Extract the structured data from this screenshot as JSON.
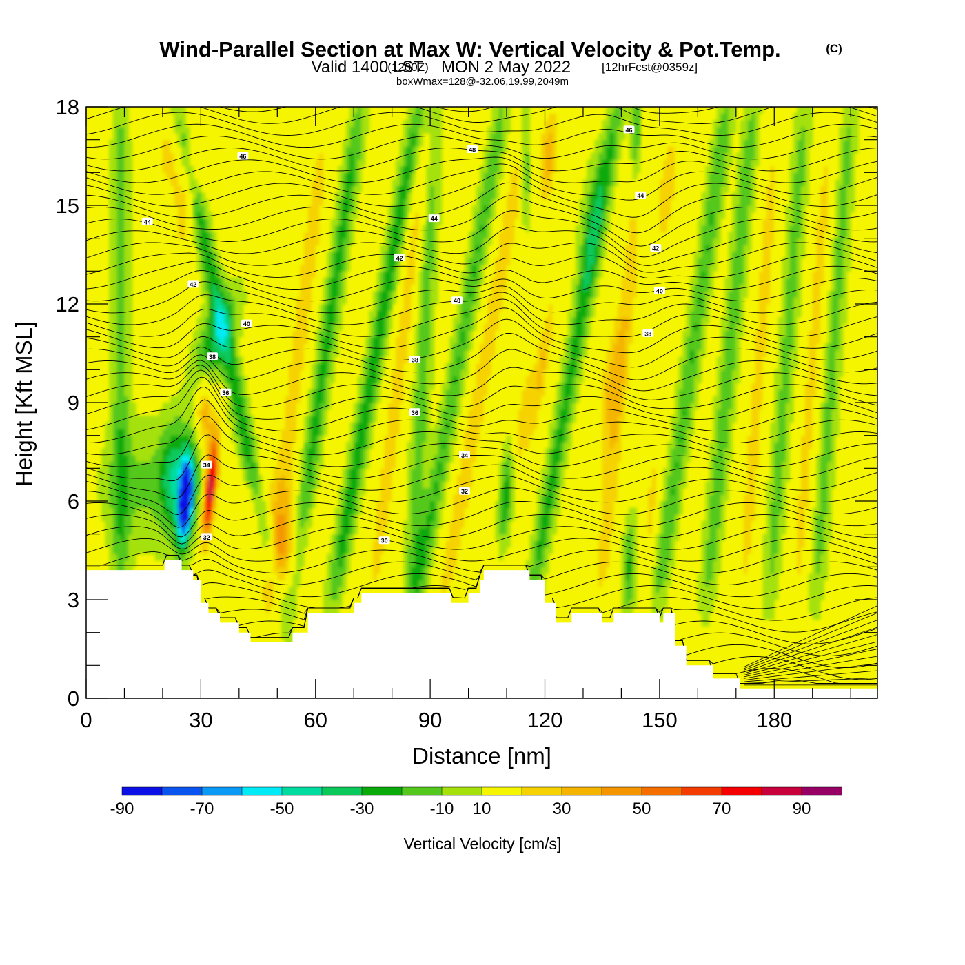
{
  "title": {
    "main": "Wind-Parallel Section at Max W: Vertical Velocity & Pot.Temp.",
    "copyright": "(C)",
    "valid_prefix": "Valid 1400 LST",
    "valid_utc": "(1200Z)",
    "valid_date": "MON 2 May 2022",
    "forecast": "[12hrFcst@0359z]",
    "box": "boxWmax=128@-32.06,19.99,2049m"
  },
  "chart_data": {
    "type": "heatmap",
    "xlabel": "Distance [nm]",
    "ylabel": "Height [Kft MSL]",
    "xlim": [
      0,
      207
    ],
    "ylim": [
      0,
      18
    ],
    "x_ticks": [
      0,
      30,
      60,
      90,
      120,
      150,
      180
    ],
    "y_ticks": [
      0,
      3,
      6,
      9,
      12,
      15,
      18
    ],
    "colorbar": {
      "label": "Vertical Velocity [cm/s]",
      "ticks": [
        -90,
        -70,
        -50,
        -30,
        -10,
        10,
        30,
        50,
        70,
        90
      ],
      "bins": [
        -90,
        -80,
        -70,
        -60,
        -50,
        -40,
        -30,
        -20,
        -10,
        10,
        20,
        30,
        40,
        50,
        60,
        70,
        80,
        90
      ],
      "colors": [
        "#0a10e6",
        "#0a55f0",
        "#0a99f5",
        "#00ebf5",
        "#00dca0",
        "#0ac85a",
        "#0aaa0a",
        "#55c81e",
        "#a5e10a",
        "#f5f500",
        "#f5d200",
        "#f5b400",
        "#f59600",
        "#f56e00",
        "#f53c00",
        "#f50000",
        "#c8003c",
        "#960064"
      ]
    },
    "background_level": "0 to 10",
    "w_field_features": [
      {
        "x_center": 26,
        "z_center": 6.0,
        "min_cm_s": -90,
        "note": "downdraft core"
      },
      {
        "x_center": 32,
        "z_center": 6.4,
        "max_cm_s": 80,
        "note": "updraft core"
      },
      {
        "x_center": 52,
        "z_center": 4.5,
        "max_cm_s": 30
      },
      {
        "x_center": 121,
        "z_center": 16.5,
        "max_cm_s": 30
      },
      {
        "x_center": 110,
        "z_center": 6.0,
        "min_cm_s": -30
      },
      {
        "x_center": 142,
        "z_center": 4.0,
        "min_cm_s": -30
      },
      {
        "x_center": 145,
        "z_center": 17.0,
        "min_cm_s": -30
      }
    ],
    "theta_contour_labels": [
      "30",
      "32",
      "32",
      "34",
      "34",
      "36",
      "36",
      "38",
      "38",
      "38",
      "40",
      "40",
      "40",
      "42",
      "42",
      "42",
      "44",
      "44",
      "44",
      "46",
      "46",
      "48"
    ],
    "terrain_profile": [
      [
        0,
        3.9
      ],
      [
        20,
        3.9
      ],
      [
        20.5,
        4.2
      ],
      [
        24,
        4.2
      ],
      [
        25,
        3.9
      ],
      [
        28,
        3.6
      ],
      [
        30,
        2.9
      ],
      [
        32,
        2.6
      ],
      [
        35,
        2.3
      ],
      [
        40,
        2.0
      ],
      [
        43,
        1.7
      ],
      [
        53,
        1.7
      ],
      [
        54,
        2.0
      ],
      [
        58,
        2.6
      ],
      [
        67,
        2.6
      ],
      [
        70,
        2.9
      ],
      [
        72,
        3.2
      ],
      [
        95,
        3.2
      ],
      [
        95.5,
        2.9
      ],
      [
        100,
        3.2
      ],
      [
        103,
        3.6
      ],
      [
        104,
        3.9
      ],
      [
        114,
        3.9
      ],
      [
        116,
        3.6
      ],
      [
        120,
        2.9
      ],
      [
        123,
        2.3
      ],
      [
        127,
        2.6
      ],
      [
        132,
        2.6
      ],
      [
        135,
        2.3
      ],
      [
        138,
        2.6
      ],
      [
        149,
        2.6
      ],
      [
        150,
        2.3
      ],
      [
        151,
        2.6
      ],
      [
        153,
        2.6
      ],
      [
        154,
        1.6
      ],
      [
        157,
        1.0
      ],
      [
        162,
        1.0
      ],
      [
        164,
        0.6
      ],
      [
        170,
        0.6
      ],
      [
        171,
        0.3
      ],
      [
        207,
        0.3
      ]
    ]
  }
}
